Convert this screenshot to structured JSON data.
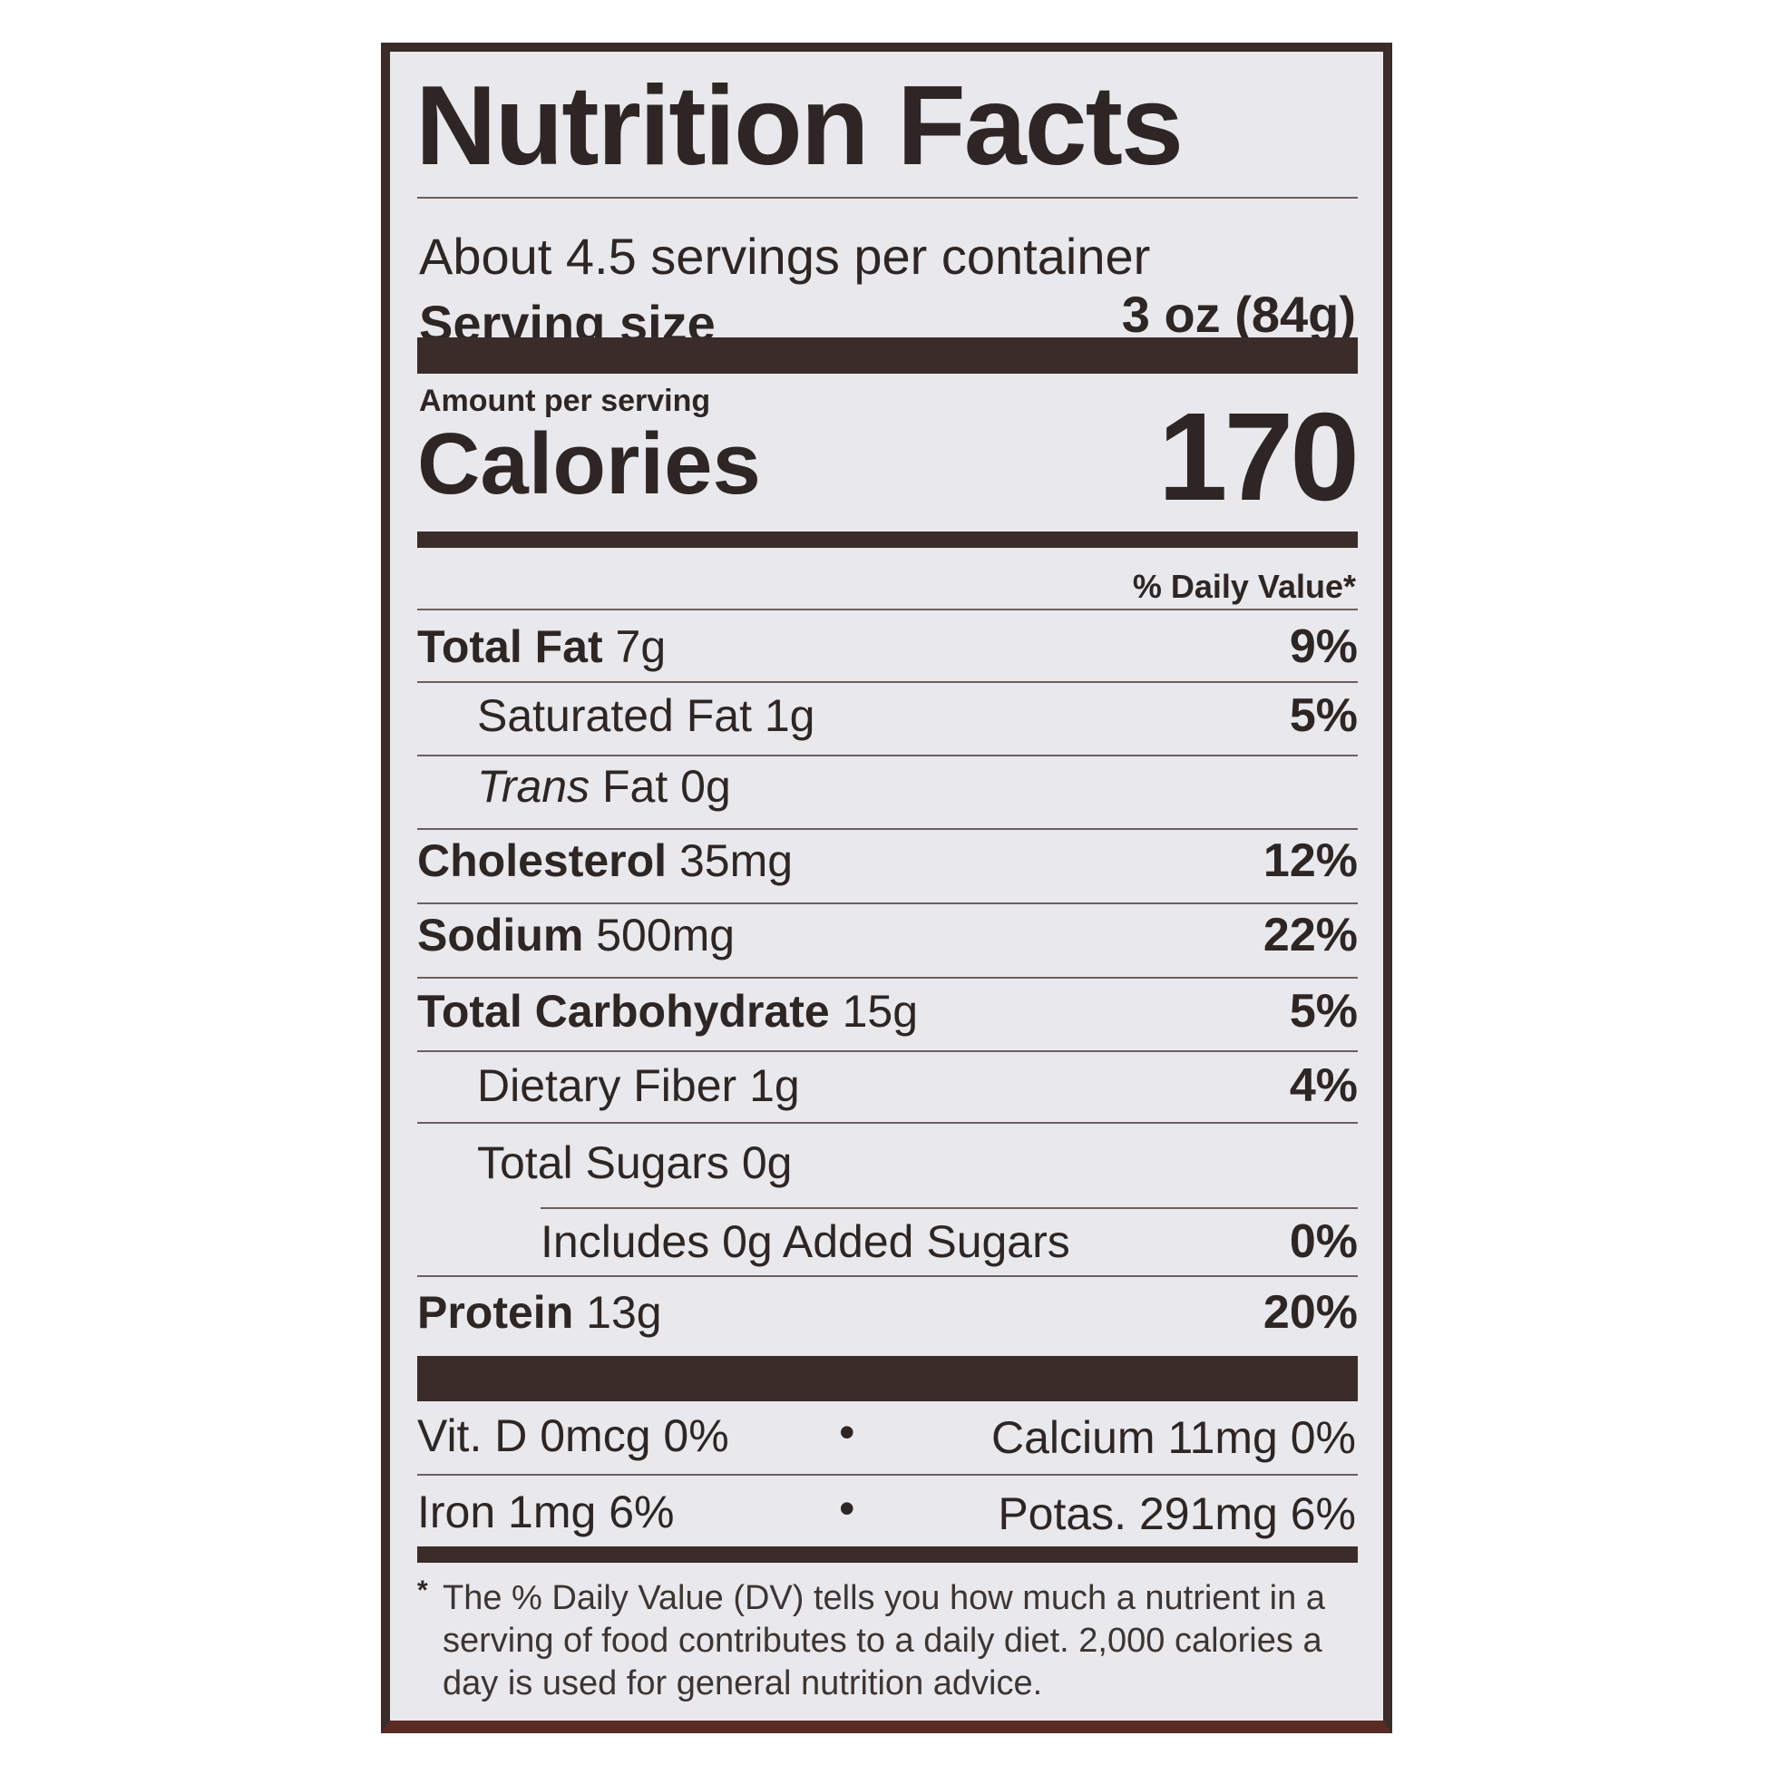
{
  "label": {
    "title": "Nutrition Facts",
    "servings_per_container": "About 4.5 servings per container",
    "serving_size_label": "Serving size",
    "serving_size_value": "3 oz (84g)",
    "amount_per_serving": "Amount per serving",
    "calories_label": "Calories",
    "calories_value": "170",
    "daily_value_header": "% Daily Value*",
    "nutrients": [
      {
        "name": "Total Fat",
        "amount": "7g",
        "dv": "9%"
      },
      {
        "name": "Saturated Fat",
        "amount": "1g",
        "dv": "5%"
      },
      {
        "name": "Trans",
        "name2": "Fat",
        "amount": "0g",
        "dv": ""
      },
      {
        "name": "Cholesterol",
        "amount": "35mg",
        "dv": "12%"
      },
      {
        "name": "Sodium",
        "amount": "500mg",
        "dv": "22%"
      },
      {
        "name": "Total Carbohydrate",
        "amount": "15g",
        "dv": "5%"
      },
      {
        "name": "Dietary Fiber",
        "amount": "1g",
        "dv": "4%"
      },
      {
        "name": "Total Sugars",
        "amount": "0g",
        "dv": ""
      },
      {
        "name": "Includes 0g Added Sugars",
        "amount": "",
        "dv": "0%"
      },
      {
        "name": "Protein",
        "amount": "13g",
        "dv": "20%"
      }
    ],
    "minerals": [
      "Vit. D 0mcg 0%",
      "Calcium 11mg 0%",
      "Iron 1mg 6%",
      "Potas. 291mg 6%"
    ],
    "separator": "•",
    "footnote_mark": "*",
    "footnote": "The % Daily Value (DV) tells you how much a nutrient in a serving of food contributes to a daily diet. 2,000 calories a day is used for general nutrition advice."
  }
}
